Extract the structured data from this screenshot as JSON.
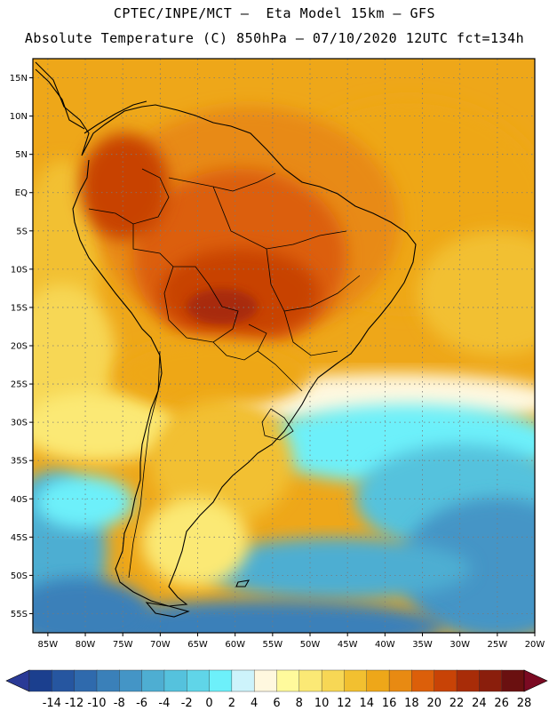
{
  "header": {
    "line1": "CPTEC/INPE/MCT –  Eta Model 15km – GFS",
    "line2": "Absolute Temperature (C) 850hPa – 07/10/2020 12UTC fct=134h"
  },
  "map": {
    "region": "South America",
    "lat_labels": [
      "15N",
      "10N",
      "5N",
      "EQ",
      "5S",
      "10S",
      "15S",
      "20S",
      "25S",
      "30S",
      "35S",
      "40S",
      "45S",
      "50S",
      "55S"
    ],
    "lon_labels": [
      "85W",
      "80W",
      "75W",
      "70W",
      "65W",
      "60W",
      "55W",
      "50W",
      "45W",
      "40W",
      "35W",
      "30W",
      "25W",
      "20W"
    ],
    "lat_range": [
      17.5,
      -57.5
    ],
    "lon_range": [
      -87,
      -20
    ]
  },
  "colorbar": {
    "labels": [
      "-14",
      "-12",
      "-10",
      "-8",
      "-6",
      "-4",
      "-2",
      "0",
      "2",
      "4",
      "6",
      "8",
      "10",
      "12",
      "14",
      "16",
      "18",
      "20",
      "22",
      "24",
      "26",
      "28"
    ],
    "colors": [
      "#1b3f8e",
      "#2656a0",
      "#2f6aad",
      "#3a80b9",
      "#4495c6",
      "#4eaed2",
      "#55c2dd",
      "#60d5e8",
      "#6df0fa",
      "#cdf3fb",
      "#fff8df",
      "#fffa9c",
      "#fbe975",
      "#f7d755",
      "#f2c030",
      "#eea719",
      "#e88a12",
      "#dc5f0a",
      "#c84306",
      "#a82c08",
      "#8a1e0c",
      "#6a1010"
    ],
    "under_color": "#2a3a96",
    "over_color": "#7b0a22"
  }
}
